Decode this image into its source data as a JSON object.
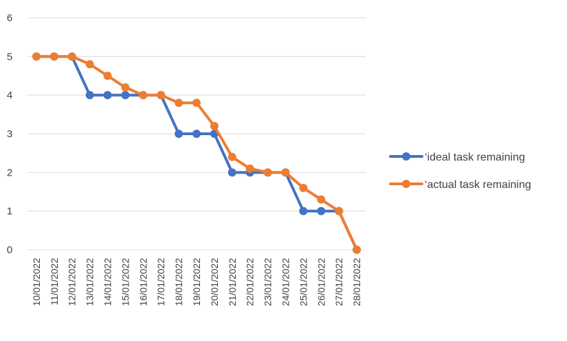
{
  "chart_data": {
    "type": "line",
    "title": "",
    "xlabel": "",
    "ylabel": "",
    "ylim": [
      0,
      6
    ],
    "yticks": [
      "0",
      "1",
      "2",
      "3",
      "4",
      "5",
      "6"
    ],
    "grid": true,
    "legend_position": "right",
    "categories": [
      "10/01/2022",
      "11/01/2022",
      "12/01/2022",
      "13/01/2022",
      "14/01/2022",
      "15/01/2022",
      "16/01/2022",
      "17/01/2022",
      "18/01/2022",
      "19/01/2022",
      "20/01/2022",
      "21/01/2022",
      "22/01/2022",
      "23/01/2022",
      "24/01/2022",
      "25/01/2022",
      "26/01/2022",
      "27/01/2022",
      "28/01/2022"
    ],
    "series": [
      {
        "name": "‘ideal task remaining",
        "color": "#4472C4",
        "values": [
          5,
          5,
          5,
          4,
          4,
          4,
          4,
          4,
          3,
          3,
          3,
          2,
          2,
          2,
          2,
          1,
          1,
          1,
          0
        ]
      },
      {
        "name": "‘actual task remaining",
        "color": "#ED7D31",
        "values": [
          5,
          5,
          5,
          4.8,
          4.5,
          4.2,
          4,
          4,
          3.8,
          3.8,
          3.2,
          2.4,
          2.1,
          2,
          2,
          1.6,
          1.3,
          1,
          0
        ]
      }
    ]
  }
}
